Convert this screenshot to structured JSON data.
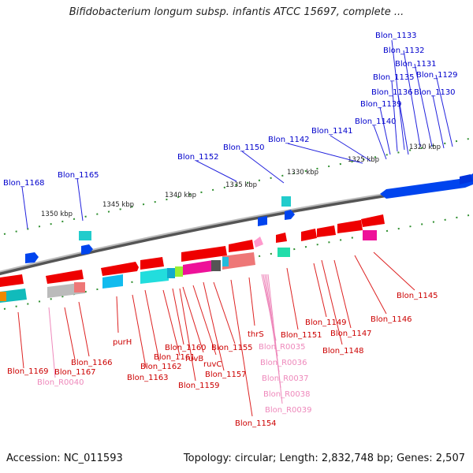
{
  "title": "Bifidobacterium longum subsp. infantis ATCC 15697, complete ...",
  "accession": "Accession: NC_011593",
  "summary": "Topology: circular; Length: 2,832,748 bp; Genes: 2,507",
  "ticks": [
    "1350 kbp",
    "1345 kbp",
    "1340 kbp",
    "1335 kbp",
    "1330 kbp",
    "1325 kbp",
    "1320 kbp"
  ],
  "labels_top": [
    "Blon_1133",
    "Blon_1132",
    "Blon_1131",
    "Blon_1129",
    "Blon_1135",
    "Blon_1136",
    "Blon_1130",
    "Blon_1139",
    "Blon_1140",
    "Blon_1141",
    "Blon_1142",
    "Blon_1150",
    "Blon_1152",
    "Blon_1165",
    "Blon_1168"
  ],
  "labels_bottom": [
    "Blon_1169",
    "Blon_R0040",
    "Blon_1167",
    "Blon_1166",
    "purH",
    "Blon_1163",
    "Blon_1162",
    "Blon_1161",
    "Blon_1160",
    "ruvB",
    "ruvC",
    "Blon_1159",
    "Blon_1157",
    "Blon_1155",
    "Blon_1154",
    "thrS",
    "Blon_R0035",
    "Blon_R0036",
    "Blon_R0037",
    "Blon_R0038",
    "Blon_R0039",
    "Blon_1151",
    "Blon_1149",
    "Blon_1148",
    "Blon_1147",
    "Blon_1146",
    "Blon_1145"
  ],
  "colors": {
    "top_label": "#0000cc",
    "bottom_label": "#cc0000",
    "rna_label": "#ee88bb",
    "backbone": "#888888",
    "tick": "#2f8f2f"
  }
}
